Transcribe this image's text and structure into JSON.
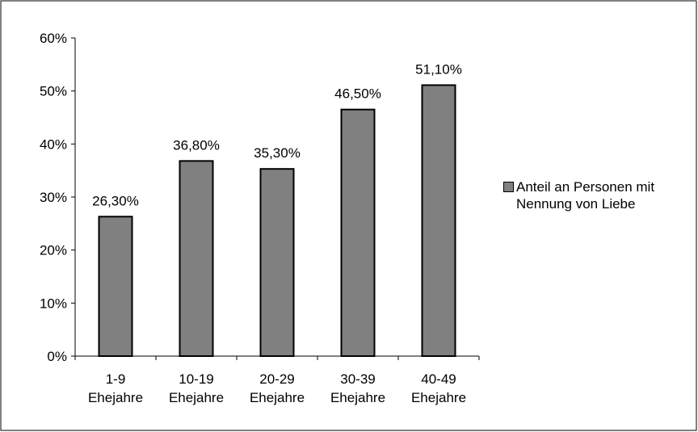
{
  "chart_data": {
    "type": "bar",
    "categories": [
      [
        "1-9",
        "Ehejahre"
      ],
      [
        "10-19",
        "Ehejahre"
      ],
      [
        "20-29",
        "Ehejahre"
      ],
      [
        "30-39",
        "Ehejahre"
      ],
      [
        "40-49",
        "Ehejahre"
      ]
    ],
    "series": [
      {
        "name": "Anteil an Personen mit Nennung von Liebe",
        "values": [
          26.3,
          36.8,
          35.3,
          46.5,
          51.1
        ],
        "data_labels": [
          "26,30%",
          "36,80%",
          "35,30%",
          "46,50%",
          "51,10%"
        ]
      }
    ],
    "ylim": [
      0,
      60
    ],
    "yticks": [
      0,
      10,
      20,
      30,
      40,
      50,
      60
    ],
    "ytick_labels": [
      "0%",
      "10%",
      "20%",
      "30%",
      "40%",
      "50%",
      "60%"
    ],
    "grid": false,
    "legend_position": "right",
    "colors": {
      "bar": "#808080",
      "bar_edge": "#000000",
      "axis": "#000000"
    }
  }
}
